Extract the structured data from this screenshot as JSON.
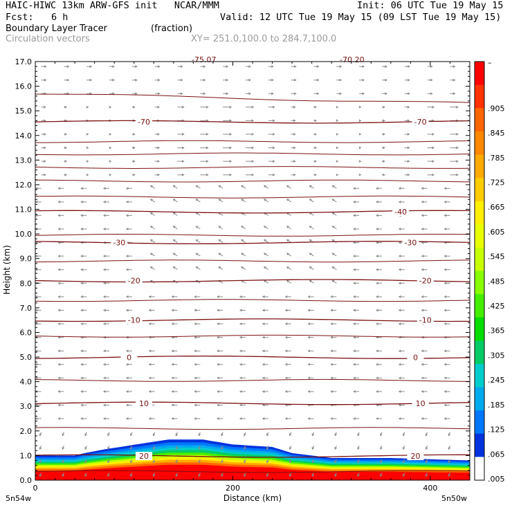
{
  "header": {
    "title_left": "HAIC-HIWC 13km ARW-GFS init   NCAR/MMM",
    "init": "Init: 06 UTC Tue 19 May 15",
    "fcst_label": "Fcst:",
    "fcst_value": "6 h",
    "valid": "Valid: 12 UTC Tue 19 May 15 (09 LST Tue 19 May 15)",
    "field_name": "Boundary Layer Tracer",
    "field_units": "(fraction)",
    "vector_label": "Circulation vectors",
    "xy_label": "XY= 251.0,100.0 to 284.7,100.0"
  },
  "chart_data": {
    "type": "heatmap",
    "xlabel": "Distance (km)",
    "ylabel": "Height (km)",
    "xlim": [
      0,
      440
    ],
    "ylim": [
      0,
      17
    ],
    "x_ticks": [
      "0",
      "200",
      "400"
    ],
    "x_tick_values": [
      0,
      200,
      400
    ],
    "x_end_labels": [
      "5n54w",
      "5n50w"
    ],
    "y_ticks": [
      "0.0",
      "1.0",
      "2.0",
      "3.0",
      "4.0",
      "5.0",
      "6.0",
      "7.0",
      "8.0",
      "9.0",
      "10.0",
      "11.0",
      "12.0",
      "13.0",
      "14.0",
      "15.0",
      "16.0",
      "17.0"
    ],
    "colorbar": {
      "labels": [
        "–",
        ".905",
        ".845",
        ".785",
        ".725",
        ".665",
        ".605",
        ".545",
        ".485",
        ".425",
        ".365",
        ".305",
        ".245",
        ".185",
        ".125",
        ".065",
        ".005"
      ],
      "colors": [
        "#ff0000",
        "#ff3300",
        "#ff6600",
        "#ff8800",
        "#ffaa00",
        "#ffcc00",
        "#ffee00",
        "#e8ff00",
        "#c8ff00",
        "#88ff00",
        "#44ee00",
        "#00dd00",
        "#00cc66",
        "#00cccc",
        "#00aaee",
        "#0077ff",
        "#0033dd",
        "#ffffff"
      ]
    },
    "isotherms": [
      {
        "label": "-70",
        "height_km": 14.55,
        "labels_at_km": [
          110,
          390
        ]
      },
      {
        "label": "-40",
        "height_km": 10.9,
        "labels_at_km": [
          370
        ]
      },
      {
        "label": "-30",
        "height_km": 9.65,
        "labels_at_km": [
          85,
          380
        ]
      },
      {
        "label": "-20",
        "height_km": 8.1,
        "labels_at_km": [
          100,
          395
        ]
      },
      {
        "label": "-10",
        "height_km": 6.5,
        "labels_at_km": [
          100,
          395
        ]
      },
      {
        "label": "0",
        "height_km": 4.99,
        "labels_at_km": [
          95,
          385
        ]
      },
      {
        "label": "10",
        "height_km": 3.12,
        "labels_at_km": [
          110,
          390
        ]
      },
      {
        "label": "20",
        "height_km": 0.98,
        "labels_at_km": [
          110,
          385
        ]
      }
    ],
    "partial_top_labels": [
      "-75.07",
      "-70.20"
    ],
    "tracer_top_km": [
      [
        0,
        1.0
      ],
      [
        40,
        1.0
      ],
      [
        50,
        1.1
      ],
      [
        70,
        1.25
      ],
      [
        110,
        1.5
      ],
      [
        135,
        1.65
      ],
      [
        170,
        1.65
      ],
      [
        200,
        1.45
      ],
      [
        240,
        1.35
      ],
      [
        260,
        1.1
      ],
      [
        300,
        0.9
      ],
      [
        360,
        0.9
      ],
      [
        400,
        0.85
      ],
      [
        440,
        0.8
      ]
    ]
  }
}
